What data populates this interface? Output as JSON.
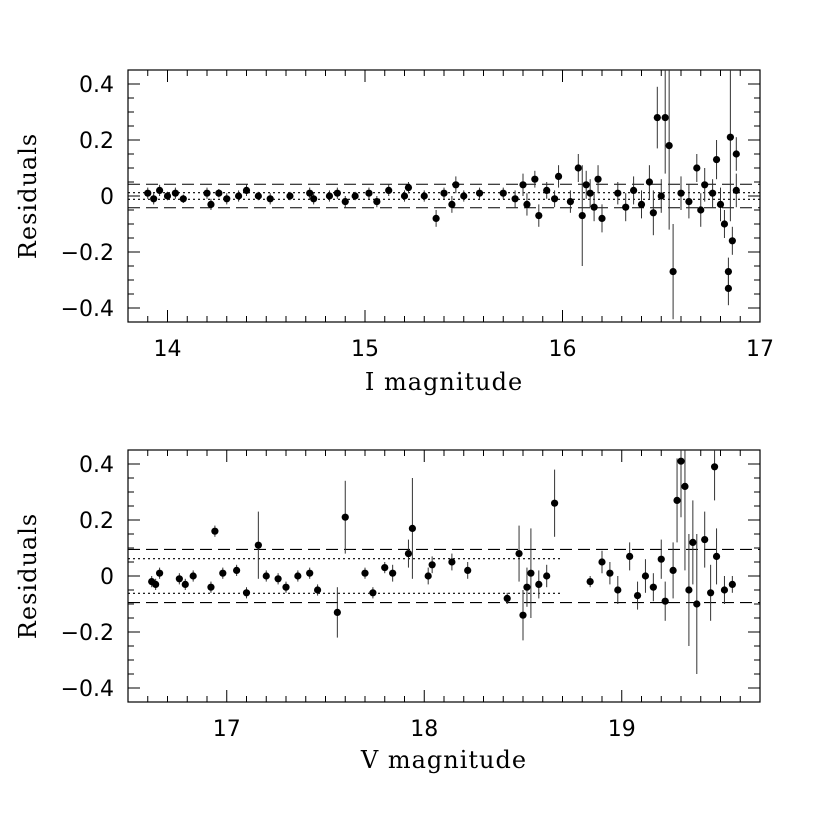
{
  "chart_data": [
    {
      "type": "scatter",
      "xlabel": "I magnitude",
      "ylabel": "Residuals",
      "xlim": [
        13.8,
        17.0
      ],
      "ylim": [
        -0.45,
        0.45
      ],
      "xticks": [
        14,
        15,
        16,
        17
      ],
      "xtick_labels": [
        "14",
        "15",
        "16",
        "17"
      ],
      "yticks": [
        -0.4,
        -0.2,
        0,
        0.2,
        0.4
      ],
      "ytick_labels": [
        "−0.4",
        "−0.2",
        "0",
        "0.2",
        "0.4"
      ],
      "reference_lines": [
        {
          "style": "dashed",
          "y": 0.042,
          "x_range": [
            13.8,
            17.0
          ]
        },
        {
          "style": "dashed",
          "y": -0.042,
          "x_range": [
            13.8,
            17.0
          ]
        },
        {
          "style": "dotted",
          "y": 0.012,
          "x_range": [
            13.8,
            17.0
          ]
        },
        {
          "style": "dotted",
          "y": -0.012,
          "x_range": [
            13.8,
            17.0
          ]
        }
      ],
      "points": [
        {
          "x": 13.9,
          "y": 0.01,
          "err": 0.02
        },
        {
          "x": 13.93,
          "y": -0.01,
          "err": 0.02
        },
        {
          "x": 13.96,
          "y": 0.02,
          "err": 0.02
        },
        {
          "x": 14.0,
          "y": 0.0,
          "err": 0.015
        },
        {
          "x": 14.04,
          "y": 0.01,
          "err": 0.02
        },
        {
          "x": 14.08,
          "y": -0.01,
          "err": 0.015
        },
        {
          "x": 14.2,
          "y": 0.01,
          "err": 0.02
        },
        {
          "x": 14.22,
          "y": -0.03,
          "err": 0.02
        },
        {
          "x": 14.26,
          "y": 0.01,
          "err": 0.015
        },
        {
          "x": 14.3,
          "y": -0.01,
          "err": 0.02
        },
        {
          "x": 14.36,
          "y": 0.0,
          "err": 0.02
        },
        {
          "x": 14.4,
          "y": 0.02,
          "err": 0.02
        },
        {
          "x": 14.46,
          "y": 0.0,
          "err": 0.015
        },
        {
          "x": 14.52,
          "y": -0.01,
          "err": 0.02
        },
        {
          "x": 14.62,
          "y": 0.0,
          "err": 0.015
        },
        {
          "x": 14.72,
          "y": 0.01,
          "err": 0.02
        },
        {
          "x": 14.74,
          "y": -0.01,
          "err": 0.02
        },
        {
          "x": 14.82,
          "y": 0.0,
          "err": 0.02
        },
        {
          "x": 14.86,
          "y": 0.01,
          "err": 0.02
        },
        {
          "x": 14.9,
          "y": -0.02,
          "err": 0.02
        },
        {
          "x": 14.95,
          "y": 0.0,
          "err": 0.015
        },
        {
          "x": 15.02,
          "y": 0.01,
          "err": 0.02
        },
        {
          "x": 15.06,
          "y": -0.02,
          "err": 0.02
        },
        {
          "x": 15.12,
          "y": 0.02,
          "err": 0.02
        },
        {
          "x": 15.2,
          "y": 0.0,
          "err": 0.02
        },
        {
          "x": 15.22,
          "y": 0.03,
          "err": 0.02
        },
        {
          "x": 15.3,
          "y": 0.0,
          "err": 0.02
        },
        {
          "x": 15.36,
          "y": -0.08,
          "err": 0.03
        },
        {
          "x": 15.4,
          "y": 0.01,
          "err": 0.02
        },
        {
          "x": 15.44,
          "y": -0.03,
          "err": 0.03
        },
        {
          "x": 15.46,
          "y": 0.04,
          "err": 0.03
        },
        {
          "x": 15.5,
          "y": 0.0,
          "err": 0.02
        },
        {
          "x": 15.58,
          "y": 0.01,
          "err": 0.02
        },
        {
          "x": 15.7,
          "y": 0.01,
          "err": 0.02
        },
        {
          "x": 15.76,
          "y": -0.01,
          "err": 0.03
        },
        {
          "x": 15.8,
          "y": 0.04,
          "err": 0.04
        },
        {
          "x": 15.82,
          "y": -0.03,
          "err": 0.04
        },
        {
          "x": 15.86,
          "y": 0.06,
          "err": 0.03
        },
        {
          "x": 15.88,
          "y": -0.07,
          "err": 0.04
        },
        {
          "x": 15.92,
          "y": 0.02,
          "err": 0.03
        },
        {
          "x": 15.96,
          "y": -0.01,
          "err": 0.03
        },
        {
          "x": 15.98,
          "y": 0.07,
          "err": 0.04
        },
        {
          "x": 16.04,
          "y": -0.02,
          "err": 0.04
        },
        {
          "x": 16.08,
          "y": 0.1,
          "err": 0.05
        },
        {
          "x": 16.1,
          "y": -0.07,
          "err": 0.18
        },
        {
          "x": 16.12,
          "y": 0.04,
          "err": 0.05
        },
        {
          "x": 16.14,
          "y": 0.01,
          "err": 0.05
        },
        {
          "x": 16.16,
          "y": -0.04,
          "err": 0.05
        },
        {
          "x": 16.18,
          "y": 0.06,
          "err": 0.05
        },
        {
          "x": 16.2,
          "y": -0.08,
          "err": 0.05
        },
        {
          "x": 16.28,
          "y": 0.01,
          "err": 0.04
        },
        {
          "x": 16.32,
          "y": -0.04,
          "err": 0.05
        },
        {
          "x": 16.36,
          "y": 0.02,
          "err": 0.05
        },
        {
          "x": 16.4,
          "y": -0.03,
          "err": 0.05
        },
        {
          "x": 16.44,
          "y": 0.05,
          "err": 0.06
        },
        {
          "x": 16.46,
          "y": -0.06,
          "err": 0.08
        },
        {
          "x": 16.48,
          "y": 0.28,
          "err": 0.11
        },
        {
          "x": 16.5,
          "y": 0.0,
          "err": 0.06
        },
        {
          "x": 16.52,
          "y": 0.28,
          "err": 0.2
        },
        {
          "x": 16.54,
          "y": 0.18,
          "err": 0.3
        },
        {
          "x": 16.56,
          "y": -0.27,
          "err": 0.17
        },
        {
          "x": 16.6,
          "y": 0.01,
          "err": 0.06
        },
        {
          "x": 16.64,
          "y": -0.02,
          "err": 0.06
        },
        {
          "x": 16.68,
          "y": 0.1,
          "err": 0.05
        },
        {
          "x": 16.7,
          "y": -0.05,
          "err": 0.06
        },
        {
          "x": 16.72,
          "y": 0.04,
          "err": 0.06
        },
        {
          "x": 16.76,
          "y": 0.01,
          "err": 0.05
        },
        {
          "x": 16.78,
          "y": 0.13,
          "err": 0.07
        },
        {
          "x": 16.8,
          "y": -0.03,
          "err": 0.06
        },
        {
          "x": 16.82,
          "y": -0.1,
          "err": 0.05
        },
        {
          "x": 16.84,
          "y": -0.27,
          "err": 0.05
        },
        {
          "x": 16.84,
          "y": -0.33,
          "err": 0.06
        },
        {
          "x": 16.85,
          "y": 0.21,
          "err": 0.3
        },
        {
          "x": 16.86,
          "y": -0.16,
          "err": 0.05
        },
        {
          "x": 16.88,
          "y": 0.15,
          "err": 0.06
        },
        {
          "x": 16.88,
          "y": 0.02,
          "err": 0.06
        }
      ]
    },
    {
      "type": "scatter",
      "xlabel": "V magnitude",
      "ylabel": "Residuals",
      "xlim": [
        16.5,
        19.7
      ],
      "ylim": [
        -0.45,
        0.45
      ],
      "xticks": [
        17,
        18,
        19
      ],
      "xtick_labels": [
        "17",
        "18",
        "19"
      ],
      "yticks": [
        -0.4,
        -0.2,
        0,
        0.2,
        0.4
      ],
      "ytick_labels": [
        "−0.4",
        "−0.2",
        "0",
        "0.2",
        "0.4"
      ],
      "reference_lines": [
        {
          "style": "dashed",
          "y": 0.095,
          "x_range": [
            16.5,
            19.7
          ]
        },
        {
          "style": "dashed",
          "y": -0.095,
          "x_range": [
            16.5,
            19.7
          ]
        },
        {
          "style": "dotted",
          "y": 0.062,
          "x_range": [
            16.5,
            18.7
          ]
        },
        {
          "style": "dotted",
          "y": -0.062,
          "x_range": [
            16.5,
            18.7
          ]
        }
      ],
      "points": [
        {
          "x": 16.62,
          "y": -0.02,
          "err": 0.02
        },
        {
          "x": 16.64,
          "y": -0.03,
          "err": 0.02
        },
        {
          "x": 16.66,
          "y": 0.01,
          "err": 0.02
        },
        {
          "x": 16.76,
          "y": -0.01,
          "err": 0.02
        },
        {
          "x": 16.79,
          "y": -0.03,
          "err": 0.02
        },
        {
          "x": 16.83,
          "y": 0.0,
          "err": 0.02
        },
        {
          "x": 16.92,
          "y": -0.04,
          "err": 0.02
        },
        {
          "x": 16.94,
          "y": 0.16,
          "err": 0.02
        },
        {
          "x": 16.98,
          "y": 0.01,
          "err": 0.02
        },
        {
          "x": 17.05,
          "y": 0.02,
          "err": 0.02
        },
        {
          "x": 17.1,
          "y": -0.06,
          "err": 0.02
        },
        {
          "x": 17.16,
          "y": 0.11,
          "err": 0.12
        },
        {
          "x": 17.2,
          "y": 0.0,
          "err": 0.02
        },
        {
          "x": 17.26,
          "y": -0.01,
          "err": 0.02
        },
        {
          "x": 17.3,
          "y": -0.04,
          "err": 0.02
        },
        {
          "x": 17.36,
          "y": 0.0,
          "err": 0.02
        },
        {
          "x": 17.42,
          "y": 0.01,
          "err": 0.02
        },
        {
          "x": 17.46,
          "y": -0.05,
          "err": 0.02
        },
        {
          "x": 17.56,
          "y": -0.13,
          "err": 0.09
        },
        {
          "x": 17.6,
          "y": 0.21,
          "err": 0.13
        },
        {
          "x": 17.7,
          "y": 0.01,
          "err": 0.02
        },
        {
          "x": 17.74,
          "y": -0.06,
          "err": 0.02
        },
        {
          "x": 17.8,
          "y": 0.03,
          "err": 0.02
        },
        {
          "x": 17.84,
          "y": 0.01,
          "err": 0.03
        },
        {
          "x": 17.92,
          "y": 0.08,
          "err": 0.05
        },
        {
          "x": 17.94,
          "y": 0.17,
          "err": 0.18
        },
        {
          "x": 18.02,
          "y": 0.0,
          "err": 0.03
        },
        {
          "x": 18.04,
          "y": 0.04,
          "err": 0.03
        },
        {
          "x": 18.14,
          "y": 0.05,
          "err": 0.03
        },
        {
          "x": 18.22,
          "y": 0.02,
          "err": 0.03
        },
        {
          "x": 18.42,
          "y": -0.08,
          "err": 0.02
        },
        {
          "x": 18.48,
          "y": 0.08,
          "err": 0.1
        },
        {
          "x": 18.5,
          "y": -0.14,
          "err": 0.09
        },
        {
          "x": 18.52,
          "y": -0.04,
          "err": 0.07
        },
        {
          "x": 18.54,
          "y": 0.01,
          "err": 0.16
        },
        {
          "x": 18.58,
          "y": -0.03,
          "err": 0.05
        },
        {
          "x": 18.62,
          "y": 0.0,
          "err": 0.04
        },
        {
          "x": 18.66,
          "y": 0.26,
          "err": 0.12
        },
        {
          "x": 18.84,
          "y": -0.02,
          "err": 0.02
        },
        {
          "x": 18.9,
          "y": 0.05,
          "err": 0.04
        },
        {
          "x": 18.94,
          "y": 0.01,
          "err": 0.04
        },
        {
          "x": 18.98,
          "y": -0.05,
          "err": 0.05
        },
        {
          "x": 19.04,
          "y": 0.07,
          "err": 0.05
        },
        {
          "x": 19.08,
          "y": -0.07,
          "err": 0.05
        },
        {
          "x": 19.12,
          "y": 0.0,
          "err": 0.06
        },
        {
          "x": 19.16,
          "y": -0.04,
          "err": 0.05
        },
        {
          "x": 19.2,
          "y": 0.06,
          "err": 0.07
        },
        {
          "x": 19.22,
          "y": -0.09,
          "err": 0.07
        },
        {
          "x": 19.26,
          "y": 0.02,
          "err": 0.1
        },
        {
          "x": 19.28,
          "y": 0.27,
          "err": 0.15
        },
        {
          "x": 19.3,
          "y": 0.41,
          "err": 0.2
        },
        {
          "x": 19.32,
          "y": 0.32,
          "err": 0.3
        },
        {
          "x": 19.34,
          "y": -0.05,
          "err": 0.2
        },
        {
          "x": 19.36,
          "y": 0.12,
          "err": 0.15
        },
        {
          "x": 19.38,
          "y": -0.1,
          "err": 0.25
        },
        {
          "x": 19.42,
          "y": 0.13,
          "err": 0.1
        },
        {
          "x": 19.45,
          "y": -0.06,
          "err": 0.1
        },
        {
          "x": 19.47,
          "y": 0.39,
          "err": 0.12
        },
        {
          "x": 19.48,
          "y": 0.07,
          "err": 0.1
        },
        {
          "x": 19.52,
          "y": -0.05,
          "err": 0.05
        },
        {
          "x": 19.56,
          "y": -0.03,
          "err": 0.03
        }
      ]
    }
  ]
}
